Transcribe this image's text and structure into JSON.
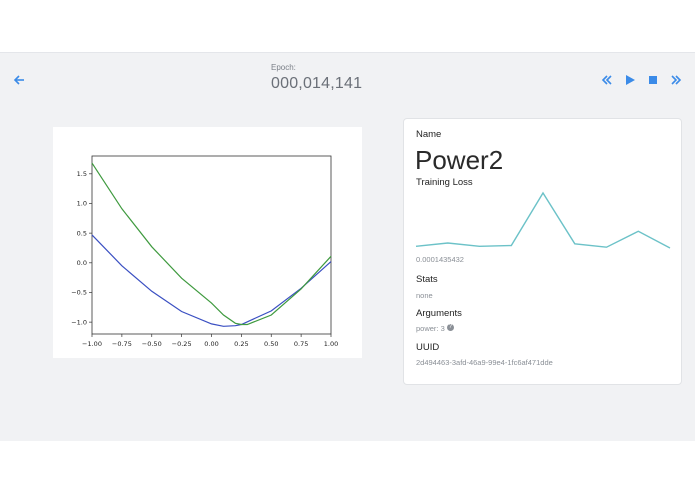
{
  "header": {
    "epoch_label": "Epoch:",
    "epoch_value": "000,014,141"
  },
  "icons": {
    "back": "arrow-left-icon",
    "rewind": "double-chevron-left-icon",
    "play": "play-icon",
    "stop": "stop-icon",
    "fast_forward": "double-chevron-right-icon"
  },
  "colors": {
    "accent": "#3b8be8",
    "loss_line": "#6cc2c8",
    "curve_blue": "#3a4fc2",
    "curve_green": "#3f9a3f"
  },
  "chart_data": {
    "type": "line",
    "x_ticks": [
      "−1.00",
      "−0.75",
      "−0.50",
      "−0.25",
      "0.00",
      "0.25",
      "0.50",
      "0.75",
      "1.00"
    ],
    "y_ticks": [
      "1.5",
      "1.0",
      "0.5",
      "0.0",
      "−0.5",
      "−1.0"
    ],
    "xlim": [
      -1.0,
      1.0
    ],
    "ylim": [
      -1.2,
      1.8
    ],
    "grid": false,
    "series": [
      {
        "color": "#3a4fc2",
        "x": [
          -1.0,
          -0.75,
          -0.5,
          -0.25,
          0.0,
          0.1,
          0.2,
          0.25,
          0.5,
          0.75,
          1.0
        ],
        "y": [
          0.47,
          -0.05,
          -0.48,
          -0.82,
          -1.03,
          -1.07,
          -1.06,
          -1.04,
          -0.81,
          -0.43,
          0.02
        ]
      },
      {
        "color": "#3f9a3f",
        "x": [
          -1.0,
          -0.75,
          -0.5,
          -0.25,
          0.0,
          0.1,
          0.2,
          0.25,
          0.3,
          0.5,
          0.75,
          1.0
        ],
        "y": [
          1.68,
          0.91,
          0.27,
          -0.26,
          -0.68,
          -0.88,
          -1.02,
          -1.04,
          -1.04,
          -0.88,
          -0.44,
          0.11
        ]
      }
    ]
  },
  "info": {
    "name_label": "Name",
    "name_value": "Power2",
    "loss_label": "Training Loss",
    "loss_value": "0.0001435432",
    "loss_series": [
      8e-05,
      0.00012,
      8e-05,
      9e-05,
      0.00072,
      0.00011,
      7e-05,
      0.00026,
      6e-05
    ],
    "stats_label": "Stats",
    "stats_value": "none",
    "args_label": "Arguments",
    "args_value": "power: 3",
    "uuid_label": "UUID",
    "uuid_value": "2d494463-3afd-46a9-99e4-1fc6af471dde"
  }
}
